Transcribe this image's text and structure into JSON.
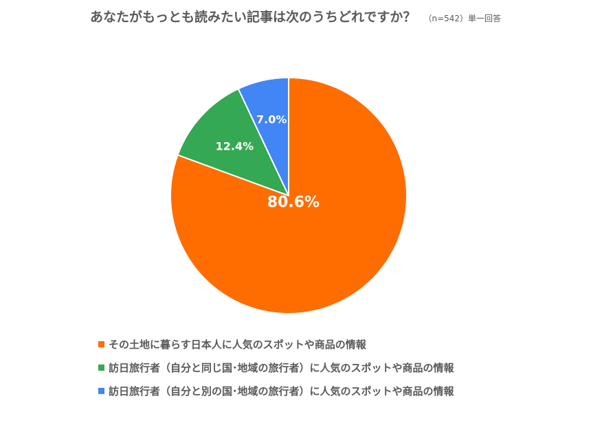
{
  "chart_data": {
    "type": "pie",
    "title": "あなたがもっとも読みたい記事は次のうちどれですか？",
    "note": "（n=542）単一回答",
    "legend_position": "bottom",
    "slices": [
      {
        "label": "その土地に暮らす日本人に人気のスポットや商品の情報",
        "value": 80.6,
        "display": "80.6%",
        "color": "#FF6D00"
      },
      {
        "label": "訪日旅行者（自分と同じ国･地域の旅行者）に人気のスポットや商品の情報",
        "value": 12.4,
        "display": "12.4%",
        "color": "#34A853"
      },
      {
        "label": "訪日旅行者（自分と別の国･地域の旅行者）に人気のスポットや商品の情報",
        "value": 7.0,
        "display": "7.0%",
        "color": "#4285F4"
      }
    ]
  }
}
